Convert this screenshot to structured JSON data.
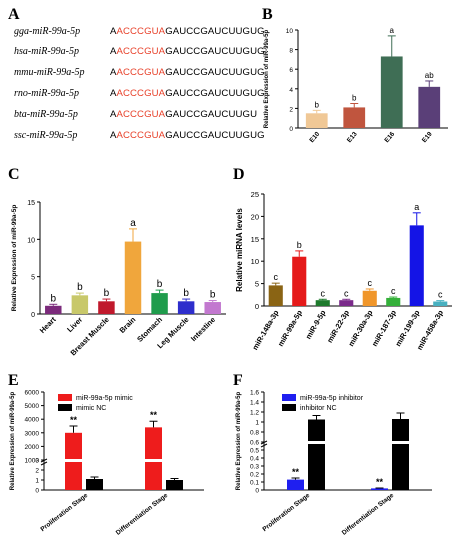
{
  "panel_labels": [
    "A",
    "B",
    "C",
    "D",
    "E",
    "F"
  ],
  "colors": {
    "seed": "#e8412a",
    "black": "#000000",
    "mimic": "#ee1c1c",
    "inhibitor": "#1f1ff0"
  },
  "sequences": [
    {
      "name": "gga-miR-99a-5p",
      "pre": "A",
      "seed": "ACCCGUA",
      "post": "GAUCCGAUCUUGUG"
    },
    {
      "name": "hsa-miR-99a-5p",
      "pre": "A",
      "seed": "ACCCGUA",
      "post": "GAUCCGAUCUUGUG"
    },
    {
      "name": "mmu-miR-99a-5p",
      "pre": "A",
      "seed": "ACCCGUA",
      "post": "GAUCCGAUCUUGUG"
    },
    {
      "name": "rno-miR-99a-5p",
      "pre": "A",
      "seed": "ACCCGUA",
      "post": "GAUCCGAUCUUGUG"
    },
    {
      "name": "bta-miR-99a-5p",
      "pre": "A",
      "seed": "ACCCGUA",
      "post": "GAUCCGAUCUUGU"
    },
    {
      "name": "ssc-miR-99a-5p",
      "pre": "A",
      "seed": "ACCCGUA",
      "post": "GAUCCGAUCUUGUG"
    }
  ],
  "chart_data": [
    {
      "panel": "B",
      "type": "bar",
      "ylabel": "Relative Expression of miR-99a-5p",
      "categories": [
        "E10",
        "E13",
        "E16",
        "E19"
      ],
      "values": [
        1.5,
        2.1,
        7.3,
        4.2
      ],
      "errors": [
        0.3,
        0.4,
        2.1,
        0.6
      ],
      "letters": [
        "b",
        "b",
        "a",
        "ab"
      ],
      "colors": [
        "#f0c896",
        "#c0553e",
        "#3f6e55",
        "#5a3f78"
      ],
      "ylim": [
        0,
        10
      ],
      "yticks": [
        0,
        2,
        4,
        6,
        8,
        10
      ]
    },
    {
      "panel": "C",
      "type": "bar",
      "ylabel": "Relative Expression of miR-99a-5p",
      "categories": [
        "Heart",
        "Liver",
        "Breast Muscle",
        "Brain",
        "Stomach",
        "Leg Muscle",
        "Intestine"
      ],
      "values": [
        1.1,
        2.5,
        1.7,
        9.7,
        2.8,
        1.7,
        1.6
      ],
      "errors": [
        0.2,
        0.3,
        0.3,
        1.7,
        0.4,
        0.3,
        0.2
      ],
      "letters": [
        "b",
        "b",
        "b",
        "a",
        "b",
        "b",
        "b"
      ],
      "colors": [
        "#7b2a7b",
        "#c8c86a",
        "#c0192c",
        "#f0a63c",
        "#1f9c4c",
        "#2e2ecc",
        "#c278cf"
      ],
      "ylim": [
        0,
        15
      ],
      "yticks": [
        0,
        5,
        10,
        15
      ]
    },
    {
      "panel": "D",
      "type": "bar",
      "ylabel": "Relative miRNA levels",
      "categories": [
        "miR-148a-3p",
        "miR-99a-5p",
        "miR-9-5p",
        "miR-22-3p",
        "miR-30a-3p",
        "miR-187-3p",
        "miR-199-3p",
        "miR-458a-3p"
      ],
      "values": [
        4.6,
        11.0,
        1.3,
        1.3,
        3.4,
        1.8,
        18.0,
        1.0
      ],
      "errors": [
        0.5,
        1.3,
        0.2,
        0.2,
        0.4,
        0.2,
        2.8,
        0.2
      ],
      "letters": [
        "c",
        "b",
        "c",
        "c",
        "c",
        "c",
        "a",
        "c"
      ],
      "colors": [
        "#8a6414",
        "#e51a1a",
        "#1d7a2c",
        "#7a2a8a",
        "#f0962a",
        "#35b03a",
        "#1414e6",
        "#48b0c0"
      ],
      "ylim": [
        0,
        25
      ],
      "yticks": [
        0,
        5,
        10,
        15,
        20,
        25
      ]
    },
    {
      "panel": "E",
      "type": "bar",
      "ylabel": "Relative Expression of miR-99a-5p",
      "categories": [
        "Proliferation Stage",
        "Differentiation Stage"
      ],
      "series": [
        {
          "name": "miR-99a-5p mimic",
          "values": [
            3000,
            3400
          ],
          "errors": [
            500,
            450
          ],
          "color": "#ee1c1c"
        },
        {
          "name": "mimic NC",
          "values": [
            1.1,
            1.0
          ],
          "errors": [
            0.2,
            0.15
          ],
          "color": "#000000"
        }
      ],
      "significance": [
        "**",
        "**"
      ],
      "yticks": [
        0,
        1,
        2,
        3,
        1000,
        2000,
        3000,
        4000,
        5000,
        6000
      ],
      "axis_break": {
        "lower": [
          0,
          3
        ],
        "upper": [
          1000,
          6000
        ]
      }
    },
    {
      "panel": "F",
      "type": "bar",
      "ylabel": "Relative Expression of miR-99a-5p",
      "categories": [
        "Proliferation Stage",
        "Differentiation Stage"
      ],
      "series": [
        {
          "name": "miR-99a-5p inhibitor",
          "values": [
            0.13,
            0.02
          ],
          "errors": [
            0.02,
            0.005
          ],
          "color": "#1f1ff0"
        },
        {
          "name": "inhibitor NC",
          "values": [
            1.05,
            1.06
          ],
          "errors": [
            0.08,
            0.12
          ],
          "color": "#000000"
        }
      ],
      "significance": [
        "**",
        "**"
      ],
      "ylim": [
        0,
        1.6
      ],
      "yticks": [
        0,
        0.1,
        0.2,
        0.3,
        0.4,
        0.5,
        0.6,
        0.8,
        1.0,
        1.2,
        1.4,
        1.6
      ],
      "ytick_labels": [
        "0",
        "0.1",
        "0.2",
        "0.3",
        "0.4",
        "0.5",
        "0.6",
        "0.8",
        "1",
        "1.2",
        "1.4",
        "1.6"
      ],
      "axis_break": {
        "lower": [
          0,
          0.6
        ],
        "upper": [
          0.6,
          1.6
        ]
      }
    }
  ]
}
